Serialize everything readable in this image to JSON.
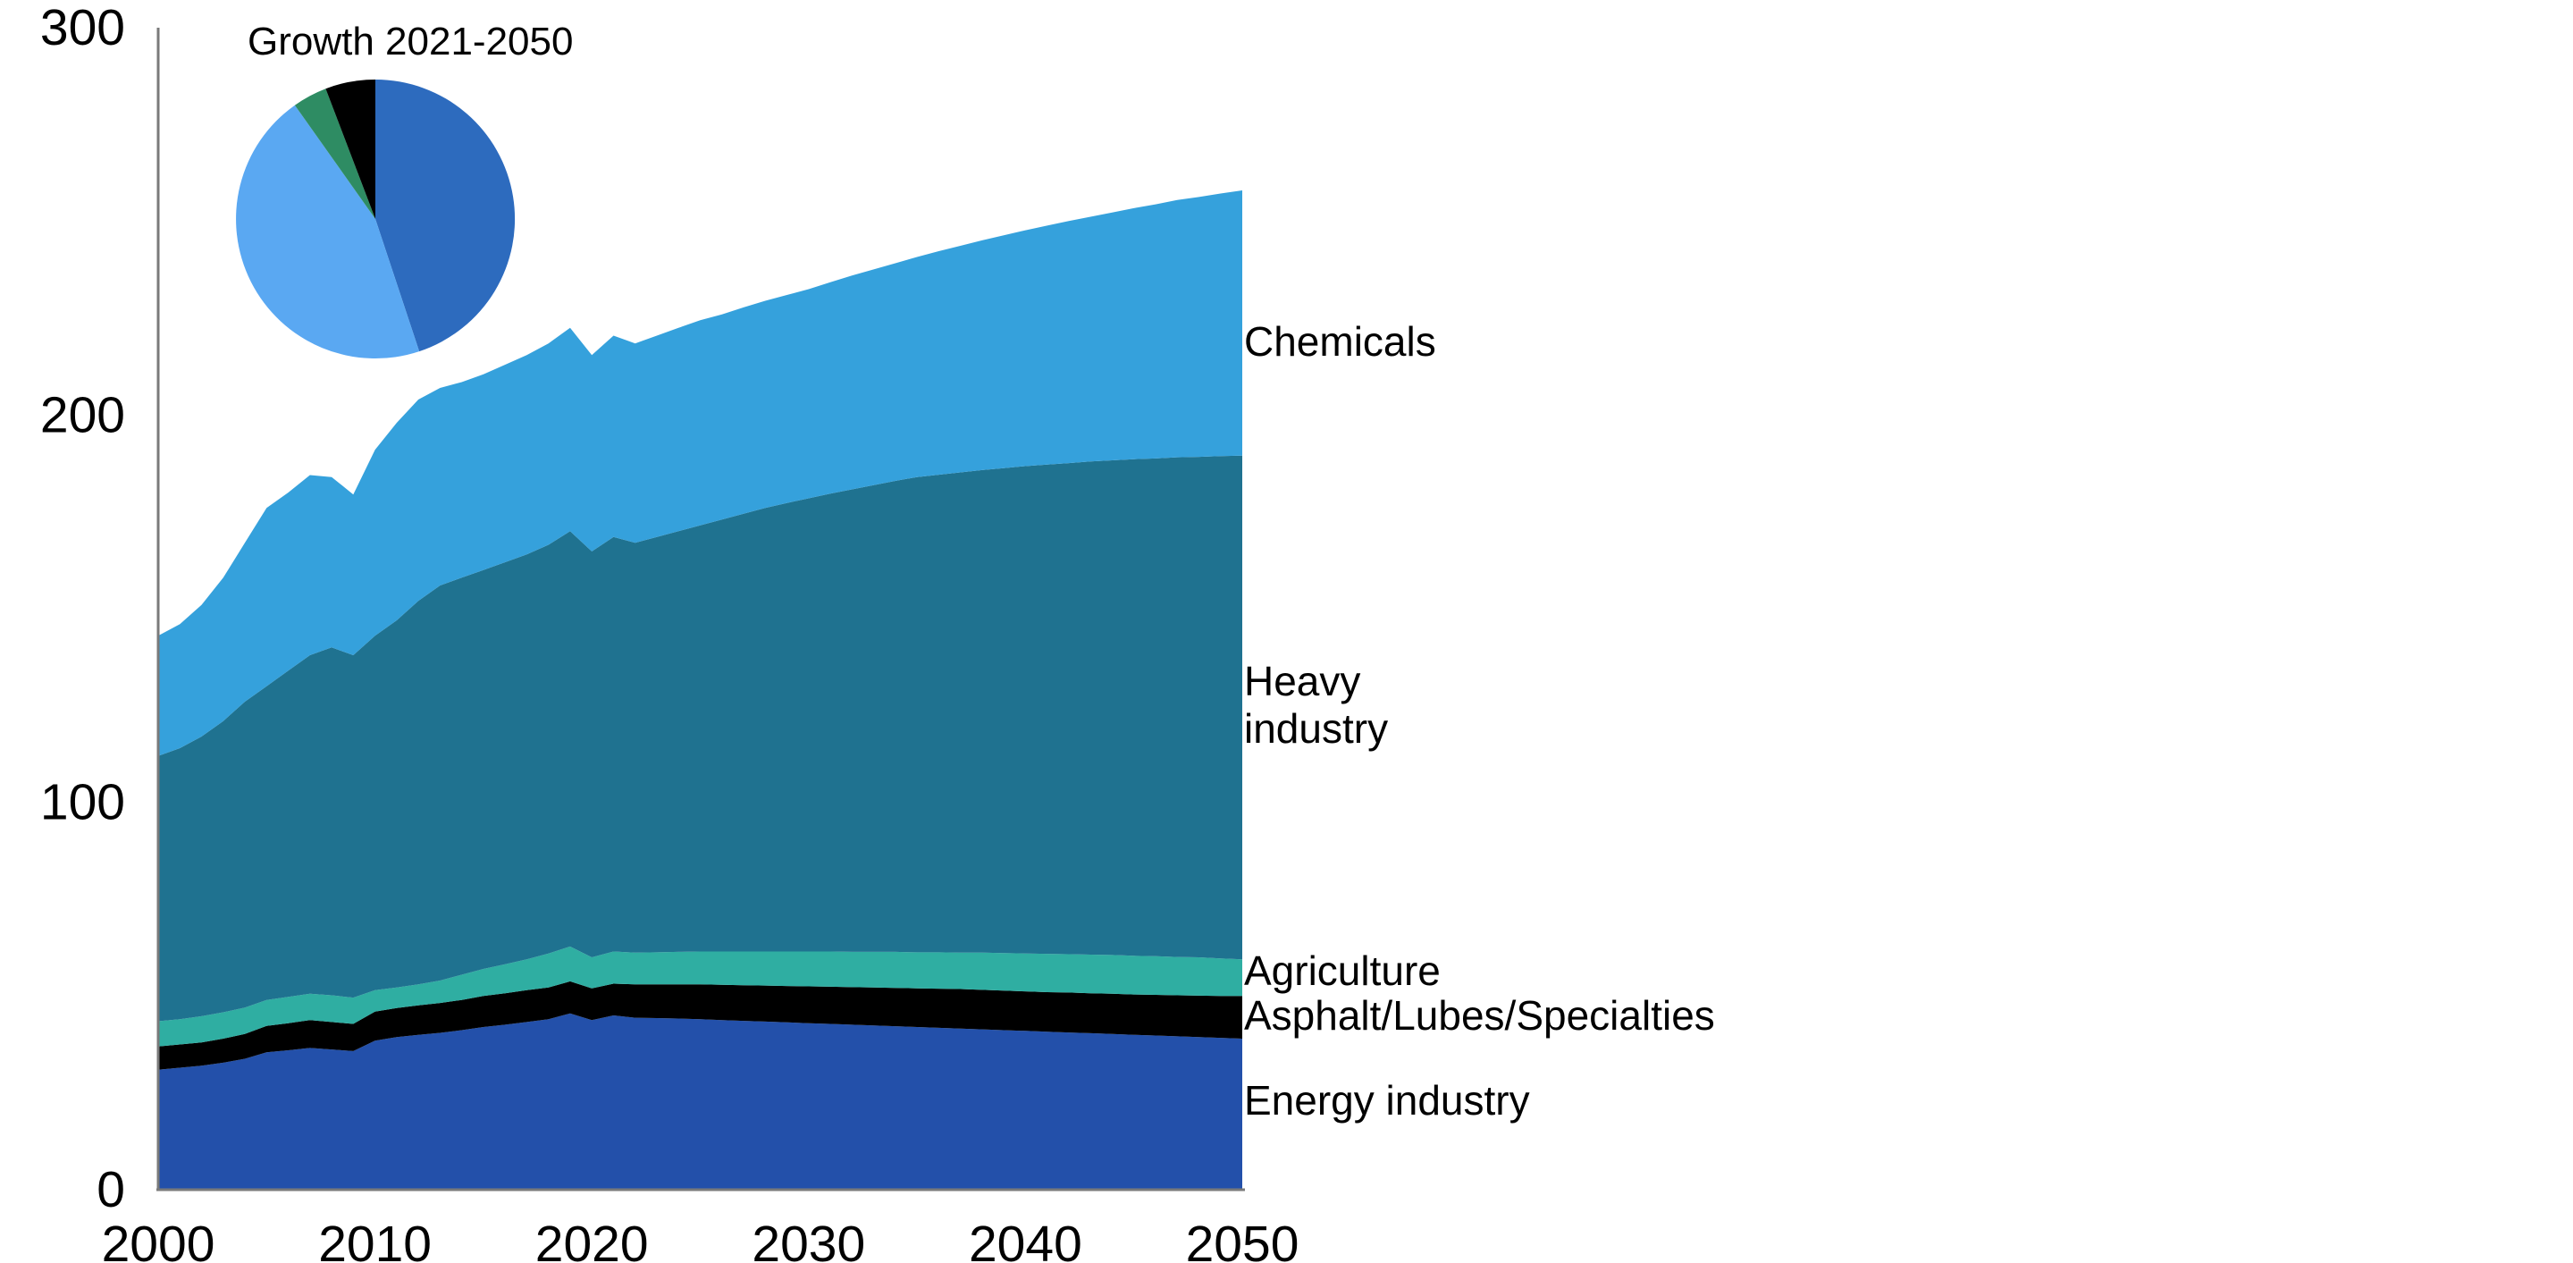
{
  "page": {
    "background": "#ffffff",
    "text_color": "#000000",
    "axis_color": "#7a7a7a"
  },
  "pie": {
    "title": "Growth 2021-2050"
  },
  "series_labels": {
    "chemicals": "Chemicals",
    "heavy_industry": "Heavy industry",
    "agriculture": "Agriculture",
    "asphalt": "Asphalt/Lubes/Specialties",
    "energy_industry": "Energy industry"
  },
  "chart_data": [
    {
      "type": "area",
      "stacked": true,
      "title": "",
      "xlabel": "",
      "ylabel": "",
      "ylim": [
        0,
        300
      ],
      "y_ticks": [
        0,
        100,
        200,
        300
      ],
      "x_ticks": [
        2000,
        2010,
        2020,
        2030,
        2040,
        2050
      ],
      "grid": false,
      "legend_position": "right-outside",
      "x": [
        2000,
        2001,
        2002,
        2003,
        2004,
        2005,
        2006,
        2007,
        2008,
        2009,
        2010,
        2011,
        2012,
        2013,
        2014,
        2015,
        2016,
        2017,
        2018,
        2019,
        2020,
        2021,
        2022,
        2023,
        2024,
        2025,
        2026,
        2027,
        2028,
        2029,
        2030,
        2031,
        2032,
        2033,
        2034,
        2035,
        2036,
        2037,
        2038,
        2039,
        2040,
        2041,
        2042,
        2043,
        2044,
        2045,
        2046,
        2047,
        2048,
        2049,
        2050
      ],
      "series": [
        {
          "name": "Energy industry",
          "color": "#2350AA",
          "values": [
            31.0,
            31.5,
            32.0,
            32.8,
            33.8,
            35.5,
            36.0,
            36.6,
            36.2,
            35.8,
            38.5,
            39.4,
            40.0,
            40.5,
            41.2,
            42.0,
            42.6,
            43.3,
            44.0,
            45.5,
            43.8,
            45.0,
            44.4,
            44.3,
            44.2,
            44.0,
            43.8,
            43.6,
            43.4,
            43.2,
            43.0,
            42.8,
            42.6,
            42.4,
            42.2,
            42.0,
            41.8,
            41.6,
            41.4,
            41.2,
            41.0,
            40.8,
            40.6,
            40.4,
            40.2,
            40.0,
            39.8,
            39.6,
            39.4,
            39.2,
            39.0
          ]
        },
        {
          "name": "Asphalt/Lubes/Specialties",
          "color": "#000000",
          "values": [
            6.0,
            6.0,
            6.0,
            6.2,
            6.4,
            6.8,
            7.0,
            7.2,
            7.1,
            7.0,
            7.5,
            7.5,
            7.6,
            7.7,
            7.8,
            8.0,
            8.1,
            8.2,
            8.2,
            8.3,
            8.2,
            8.2,
            8.6,
            8.7,
            8.8,
            9.0,
            9.1,
            9.2,
            9.3,
            9.4,
            9.5,
            9.6,
            9.7,
            9.8,
            9.9,
            10.0,
            10.1,
            10.2,
            10.2,
            10.2,
            10.2,
            10.2,
            10.3,
            10.3,
            10.4,
            10.4,
            10.5,
            10.6,
            10.7,
            10.8,
            11.0
          ]
        },
        {
          "name": "Agriculture",
          "color": "#2FAEA2",
          "values": [
            6.5,
            6.5,
            6.8,
            6.8,
            6.8,
            6.7,
            6.8,
            6.8,
            6.9,
            6.8,
            5.5,
            5.3,
            5.4,
            5.8,
            6.5,
            7.0,
            7.5,
            8.0,
            8.8,
            9.0,
            8.0,
            8.3,
            8.2,
            8.3,
            8.4,
            8.5,
            8.6,
            8.7,
            8.8,
            8.9,
            9.0,
            9.1,
            9.1,
            9.2,
            9.3,
            9.3,
            9.4,
            9.4,
            9.6,
            9.7,
            9.8,
            9.9,
            9.9,
            10.0,
            10.0,
            10.0,
            10.0,
            9.9,
            9.9,
            9.7,
            9.5
          ]
        },
        {
          "name": "Heavy industry",
          "color": "#1F7290",
          "values": [
            68.5,
            70.0,
            72.2,
            75.2,
            79.0,
            81.0,
            84.2,
            87.4,
            89.8,
            88.4,
            91.5,
            94.8,
            99.0,
            102.0,
            102.5,
            103.0,
            103.8,
            104.5,
            105.5,
            107.2,
            104.8,
            107.0,
            105.8,
            107.2,
            108.6,
            110.0,
            111.5,
            113.0,
            114.5,
            115.8,
            117.0,
            118.2,
            119.4,
            120.5,
            121.6,
            122.7,
            123.3,
            124.0,
            124.6,
            125.2,
            125.8,
            126.3,
            126.8,
            127.3,
            127.7,
            128.2,
            128.5,
            129.0,
            129.2,
            129.7,
            130.0
          ]
        },
        {
          "name": "Chemicals",
          "color": "#35A1DC",
          "values": [
            31.0,
            32.0,
            34.0,
            37.0,
            41.0,
            46.0,
            46.0,
            46.5,
            44.0,
            41.5,
            48.0,
            51.0,
            52.0,
            51.0,
            50.5,
            50.5,
            51.0,
            51.5,
            52.0,
            52.5,
            50.7,
            52.0,
            51.5,
            52.0,
            52.5,
            53.0,
            53.0,
            53.3,
            53.5,
            53.7,
            54.0,
            54.6,
            55.2,
            55.7,
            56.2,
            56.8,
            57.7,
            58.5,
            59.3,
            60.1,
            60.9,
            61.7,
            62.5,
            63.2,
            64.0,
            64.8,
            65.6,
            66.4,
            67.1,
            67.8,
            68.5
          ]
        }
      ]
    },
    {
      "type": "pie",
      "title": "Growth 2021-2050",
      "slices": [
        {
          "name": "blue-segment",
          "color": "#2D6BBE",
          "percent": 44.9
        },
        {
          "name": "light-blue-segment",
          "color": "#5AA8F2",
          "percent": 45.3
        },
        {
          "name": "green-segment",
          "color": "#2E8C63",
          "percent": 4.0
        },
        {
          "name": "black-segment",
          "color": "#000000",
          "percent": 5.8
        }
      ],
      "start_angle_deg": 0,
      "direction": "clockwise"
    }
  ]
}
